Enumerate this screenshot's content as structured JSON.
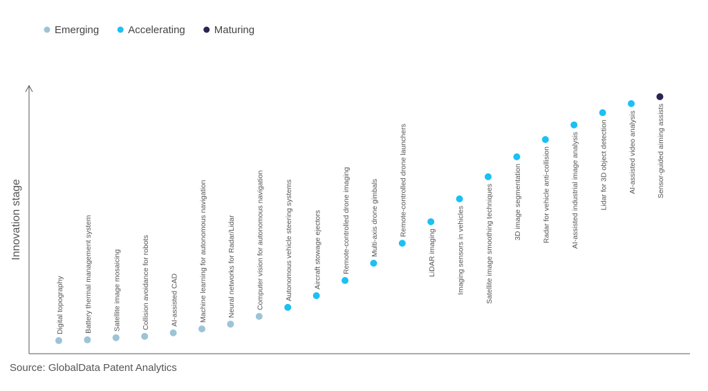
{
  "chart_data": {
    "type": "dot",
    "y_label": "Innovation stage",
    "source": "Source: GlobalData Patent Analytics",
    "ylim": [
      0,
      100
    ],
    "categories": [
      "Digital topography",
      "Battery thermal management system",
      "Satellite image mosaicing",
      "Collision avoidance for robots",
      "AI-assisted CAD",
      "Machine learning for autonomous navigation",
      "Neural networks for Radar/Lidar",
      "Computer vision for autonomous navigation",
      "Autonomous vehicle steering systems",
      "Aircraft stowage ejectors",
      "Remote-controlled drone imaging",
      "Multi-axis drone gimbals",
      "Remote-controlled drone launchers",
      "LiDAR imaging",
      "Imaging sensors in vehicles",
      "Satellite image smoothing techniques",
      "3D image segmentation",
      "Radar for vehicle anti-collision",
      "AI-assisted industrial image analysis",
      "Lidar for 3D object detection",
      "AI-assisted video analysis",
      "Sensor-guided aiming assists"
    ],
    "series": [
      {
        "name": "Emerging",
        "color": "#9dc3d6",
        "values": [
          4.4,
          4.7,
          5.5,
          6.0,
          7.3,
          8.8,
          10.6,
          13.5,
          null,
          null,
          null,
          null,
          null,
          null,
          null,
          null,
          null,
          null,
          null,
          null,
          null,
          null
        ]
      },
      {
        "name": "Accelerating",
        "color": "#1cc0f2",
        "values": [
          null,
          null,
          null,
          null,
          null,
          null,
          null,
          null,
          16.9,
          21.3,
          27.0,
          33.5,
          41.0,
          49.1,
          57.7,
          66.0,
          73.5,
          80.0,
          85.5,
          90.1,
          93.5,
          null
        ]
      },
      {
        "name": "Maturing",
        "color": "#2b2553",
        "values": [
          null,
          null,
          null,
          null,
          null,
          null,
          null,
          null,
          null,
          null,
          null,
          null,
          null,
          null,
          null,
          null,
          null,
          null,
          null,
          null,
          null,
          96.1
        ]
      }
    ]
  }
}
